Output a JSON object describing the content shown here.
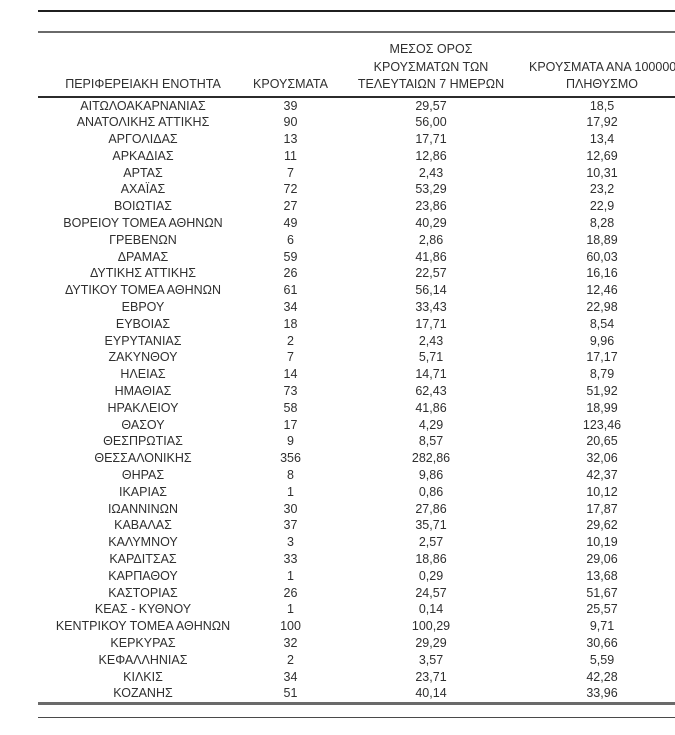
{
  "style": {
    "text_color": "#2f2f2f",
    "rule_thin_color": "#1f1f1f",
    "rule_thick_color": "#6a6a6a",
    "header_underline_color": "#2b2b2b",
    "background": "#ffffff"
  },
  "table": {
    "header_lines": [
      [
        "ΠΕΡΙΦΕΡΕΙΑΚΗ ΕΝΟΤΗΤΑ"
      ],
      [
        "ΚΡΟΥΣΜΑΤΑ"
      ],
      [
        "ΜΕΣΟΣ ΟΡΟΣ",
        "ΚΡΟΥΣΜΑΤΩΝ ΤΩΝ",
        "ΤΕΛΕΥΤΑΙΩΝ 7 ΗΜΕΡΩΝ"
      ],
      [
        "ΚΡΟΥΣΜΑΤΑ ΑΝΑ 100000",
        "ΠΛΗΘΥΣΜΟ"
      ]
    ],
    "column_keys": [
      "region",
      "cases",
      "avg7",
      "per100k"
    ],
    "rows": [
      [
        "ΑΙΤΩΛΟΑΚΑΡΝΑΝΙΑΣ",
        "39",
        "29,57",
        "18,5"
      ],
      [
        "ΑΝΑΤΟΛΙΚΗΣ ΑΤΤΙΚΗΣ",
        "90",
        "56,00",
        "17,92"
      ],
      [
        "ΑΡΓΟΛΙΔΑΣ",
        "13",
        "17,71",
        "13,4"
      ],
      [
        "ΑΡΚΑΔΙΑΣ",
        "11",
        "12,86",
        "12,69"
      ],
      [
        "ΑΡΤΑΣ",
        "7",
        "2,43",
        "10,31"
      ],
      [
        "ΑΧΑΪΑΣ",
        "72",
        "53,29",
        "23,2"
      ],
      [
        "ΒΟΙΩΤΙΑΣ",
        "27",
        "23,86",
        "22,9"
      ],
      [
        "ΒΟΡΕΙΟΥ ΤΟΜΕΑ ΑΘΗΝΩΝ",
        "49",
        "40,29",
        "8,28"
      ],
      [
        "ΓΡΕΒΕΝΩΝ",
        "6",
        "2,86",
        "18,89"
      ],
      [
        "ΔΡΑΜΑΣ",
        "59",
        "41,86",
        "60,03"
      ],
      [
        "ΔΥΤΙΚΗΣ ΑΤΤΙΚΗΣ",
        "26",
        "22,57",
        "16,16"
      ],
      [
        "ΔΥΤΙΚΟΥ ΤΟΜΕΑ ΑΘΗΝΩΝ",
        "61",
        "56,14",
        "12,46"
      ],
      [
        "ΕΒΡΟΥ",
        "34",
        "33,43",
        "22,98"
      ],
      [
        "ΕΥΒΟΙΑΣ",
        "18",
        "17,71",
        "8,54"
      ],
      [
        "ΕΥΡΥΤΑΝΙΑΣ",
        "2",
        "2,43",
        "9,96"
      ],
      [
        "ΖΑΚΥΝΘΟΥ",
        "7",
        "5,71",
        "17,17"
      ],
      [
        "ΗΛΕΙΑΣ",
        "14",
        "14,71",
        "8,79"
      ],
      [
        "ΗΜΑΘΙΑΣ",
        "73",
        "62,43",
        "51,92"
      ],
      [
        "ΗΡΑΚΛΕΙΟΥ",
        "58",
        "41,86",
        "18,99"
      ],
      [
        "ΘΑΣΟΥ",
        "17",
        "4,29",
        "123,46"
      ],
      [
        "ΘΕΣΠΡΩΤΙΑΣ",
        "9",
        "8,57",
        "20,65"
      ],
      [
        "ΘΕΣΣΑΛΟΝΙΚΗΣ",
        "356",
        "282,86",
        "32,06"
      ],
      [
        "ΘΗΡΑΣ",
        "8",
        "9,86",
        "42,37"
      ],
      [
        "ΙΚΑΡΙΑΣ",
        "1",
        "0,86",
        "10,12"
      ],
      [
        "ΙΩΑΝΝΙΝΩΝ",
        "30",
        "27,86",
        "17,87"
      ],
      [
        "ΚΑΒΑΛΑΣ",
        "37",
        "35,71",
        "29,62"
      ],
      [
        "ΚΑΛΥΜΝΟΥ",
        "3",
        "2,57",
        "10,19"
      ],
      [
        "ΚΑΡΔΙΤΣΑΣ",
        "33",
        "18,86",
        "29,06"
      ],
      [
        "ΚΑΡΠΑΘΟΥ",
        "1",
        "0,29",
        "13,68"
      ],
      [
        "ΚΑΣΤΟΡΙΑΣ",
        "26",
        "24,57",
        "51,67"
      ],
      [
        "ΚΕΑΣ - ΚΥΘΝΟΥ",
        "1",
        "0,14",
        "25,57"
      ],
      [
        "ΚΕΝΤΡΙΚΟΥ ΤΟΜΕΑ ΑΘΗΝΩΝ",
        "100",
        "100,29",
        "9,71"
      ],
      [
        "ΚΕΡΚΥΡΑΣ",
        "32",
        "29,29",
        "30,66"
      ],
      [
        "ΚΕΦΑΛΛΗΝΙΑΣ",
        "2",
        "3,57",
        "5,59"
      ],
      [
        "ΚΙΛΚΙΣ",
        "34",
        "23,71",
        "42,28"
      ],
      [
        "ΚΟΖΑΝΗΣ",
        "51",
        "40,14",
        "33,96"
      ]
    ]
  }
}
